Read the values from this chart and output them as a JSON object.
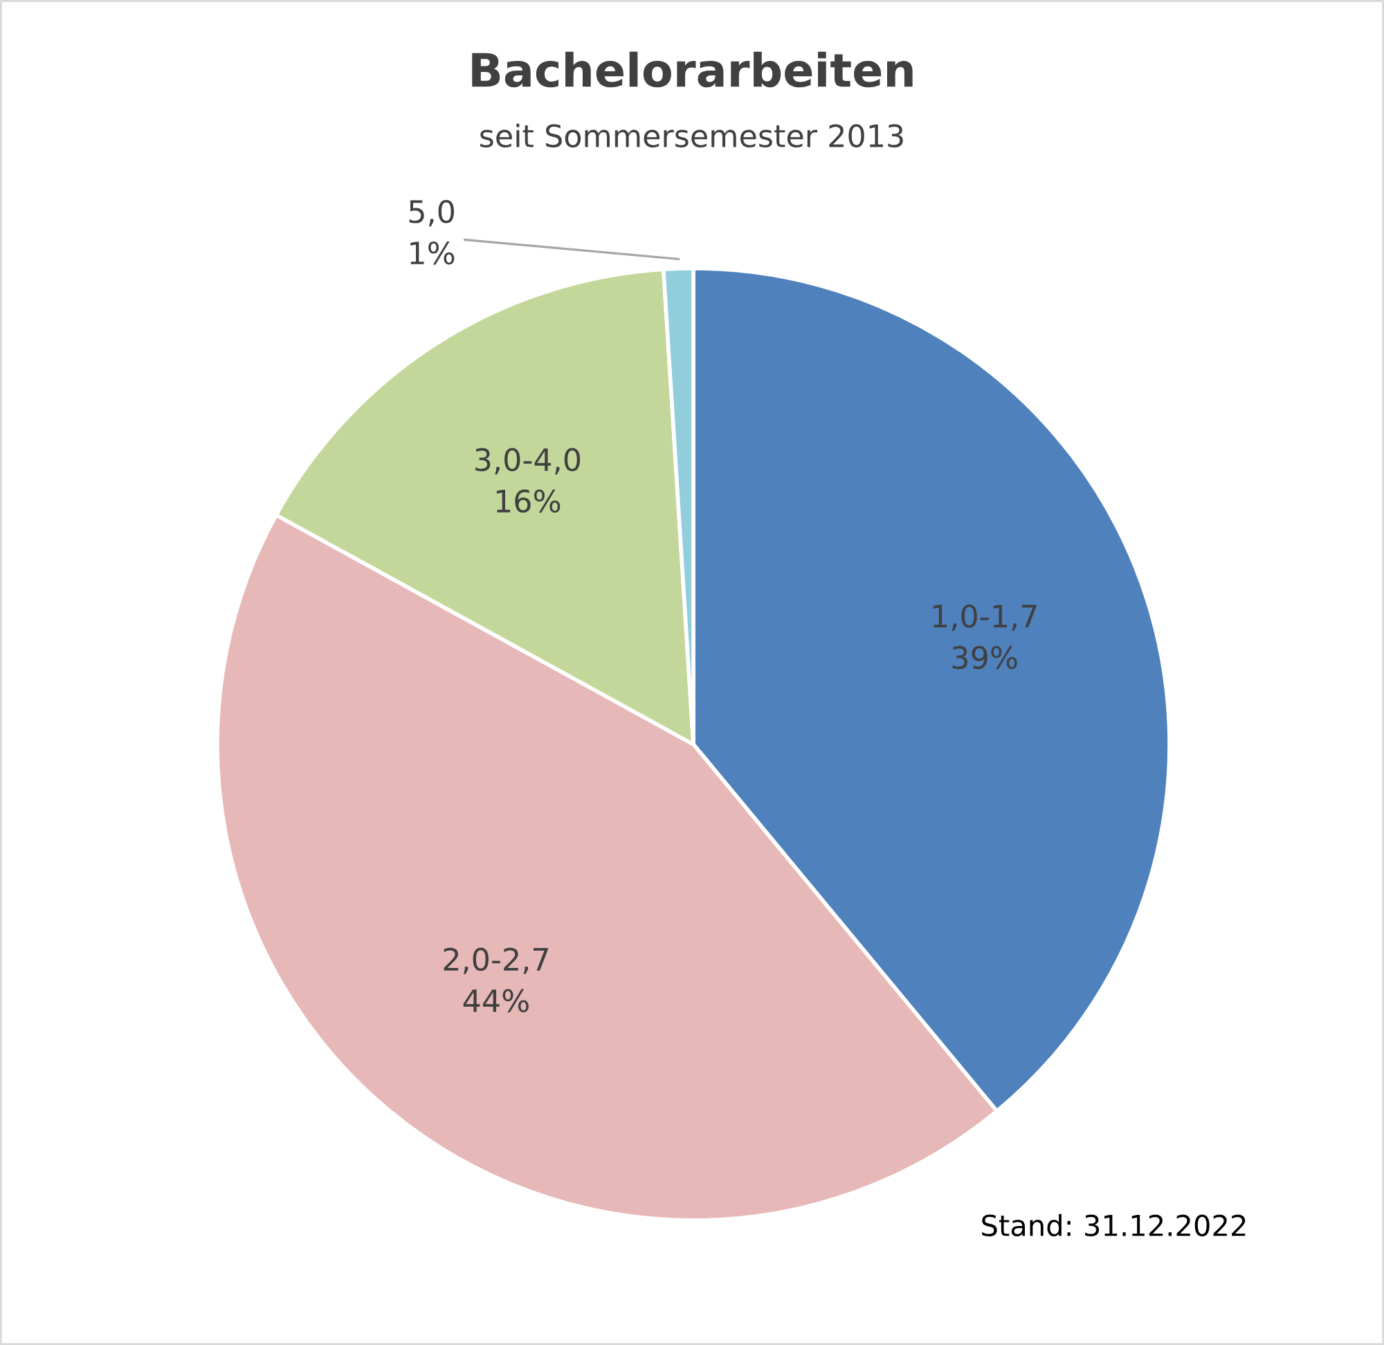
{
  "chart_data": {
    "type": "pie",
    "title": "Bachelorarbeiten",
    "subtitle": "seit Sommersemester 2013",
    "categories": [
      "1,0-1,7",
      "2,0-2,7",
      "3,0-4,0",
      "5,0"
    ],
    "values": [
      39,
      44,
      16,
      1
    ],
    "value_labels": [
      "39%",
      "44%",
      "16%",
      "1%"
    ],
    "colors": [
      "#4f81bd",
      "#e6b8b7",
      "#c4d79b",
      "#92cddc"
    ],
    "annotations": [
      "Stand: 31.12.2022"
    ],
    "legend": false
  }
}
